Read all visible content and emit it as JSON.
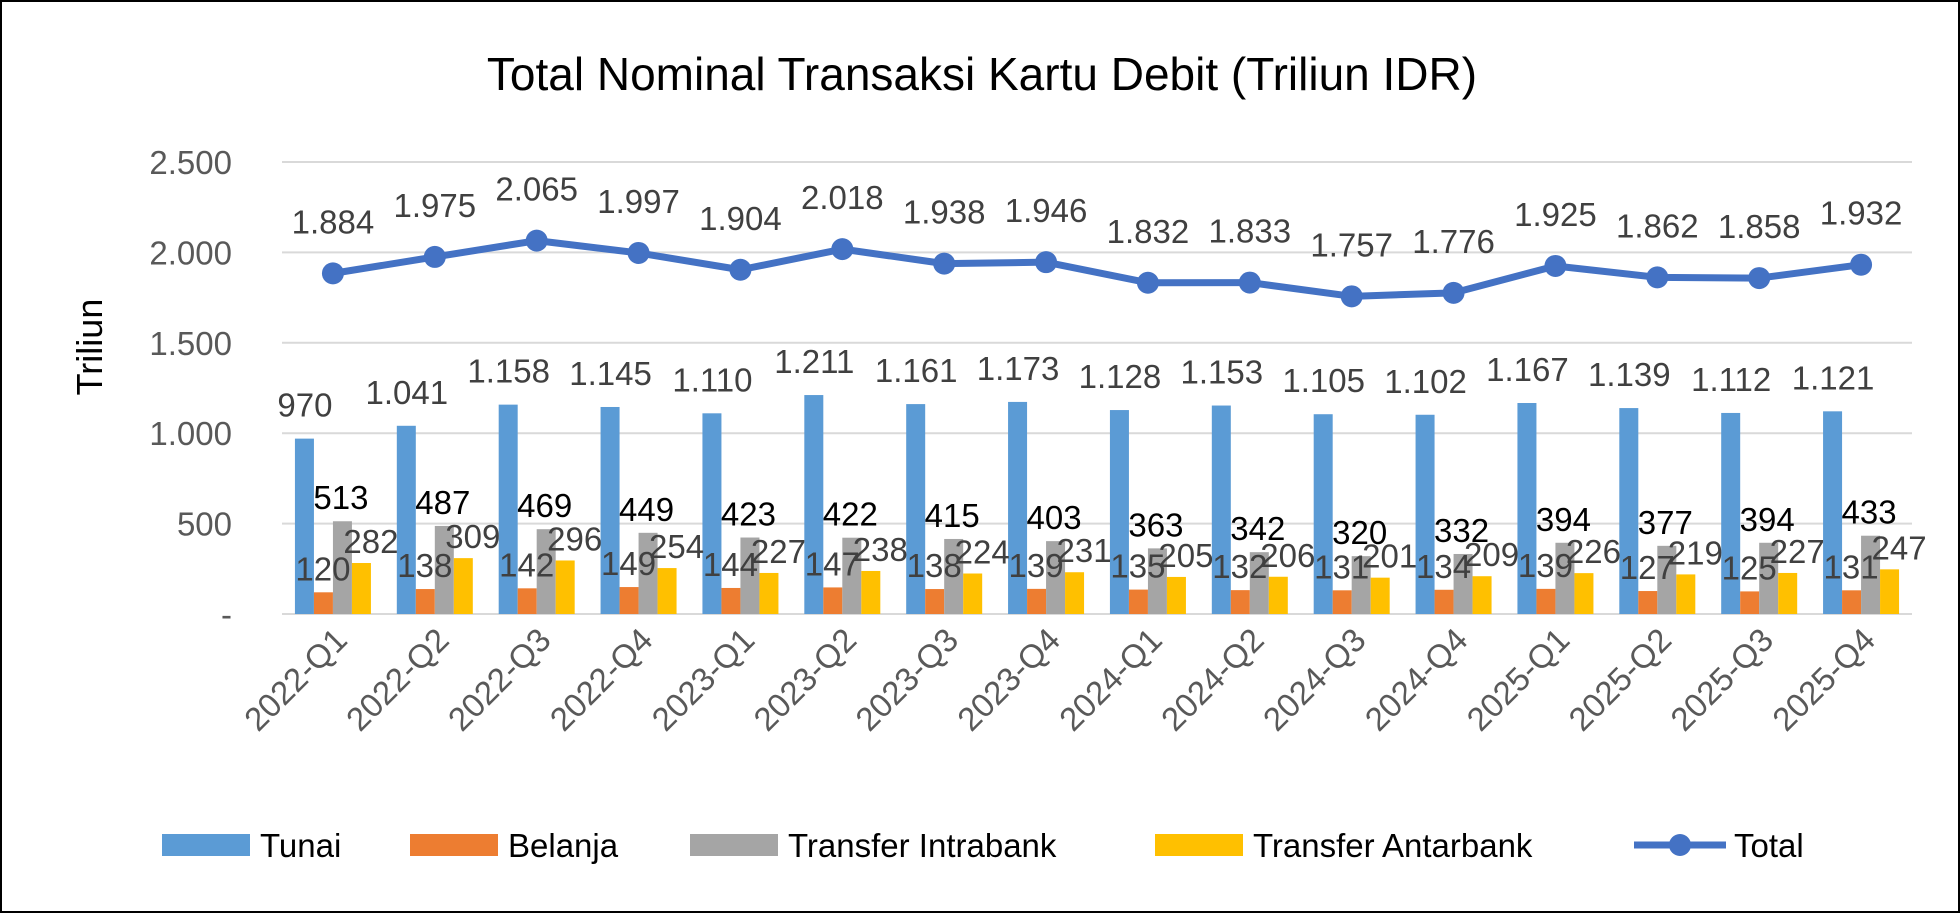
{
  "chart_data": {
    "type": "bar",
    "title": "Total Nominal Transaksi Kartu Debit (Triliun IDR)",
    "ylabel": "Triliun",
    "ylim": [
      0,
      2500
    ],
    "yticks": [
      {
        "value": 0,
        "label": "-"
      },
      {
        "value": 500,
        "label": "500"
      },
      {
        "value": 1000,
        "label": "1.000"
      },
      {
        "value": 1500,
        "label": "1.500"
      },
      {
        "value": 2000,
        "label": "2.000"
      },
      {
        "value": 2500,
        "label": "2.500"
      }
    ],
    "grid": true,
    "legend_position": "bottom",
    "categories": [
      "2022-Q1",
      "2022-Q2",
      "2022-Q3",
      "2022-Q4",
      "2023-Q1",
      "2023-Q2",
      "2023-Q3",
      "2023-Q4",
      "2024-Q1",
      "2024-Q2",
      "2024-Q3",
      "2024-Q4",
      "2025-Q1",
      "2025-Q2",
      "2025-Q3",
      "2025-Q4"
    ],
    "series": [
      {
        "name": "Tunai",
        "type": "bar",
        "color": "#5b9bd5",
        "values": [
          970,
          1041,
          1158,
          1145,
          1110,
          1211,
          1161,
          1173,
          1128,
          1153,
          1105,
          1102,
          1167,
          1139,
          1112,
          1121
        ],
        "labels": [
          "970",
          "1.041",
          "1.158",
          "1.145",
          "1.110",
          "1.211",
          "1.161",
          "1.173",
          "1.128",
          "1.153",
          "1.105",
          "1.102",
          "1.167",
          "1.139",
          "1.112",
          "1.121"
        ]
      },
      {
        "name": "Belanja",
        "type": "bar",
        "color": "#ed7d31",
        "values": [
          120,
          138,
          142,
          149,
          144,
          147,
          138,
          139,
          135,
          132,
          131,
          134,
          139,
          127,
          125,
          131
        ],
        "labels": [
          "120",
          "138",
          "142",
          "149",
          "144",
          "147",
          "138",
          "139",
          "135",
          "132",
          "131",
          "134",
          "139",
          "127",
          "125",
          "131"
        ]
      },
      {
        "name": "Transfer Intrabank",
        "type": "bar",
        "color": "#a5a5a5",
        "values": [
          513,
          487,
          469,
          449,
          423,
          422,
          415,
          403,
          363,
          342,
          320,
          332,
          394,
          377,
          394,
          433
        ],
        "labels": [
          "513",
          "487",
          "469",
          "449",
          "423",
          "422",
          "415",
          "403",
          "363",
          "342",
          "320",
          "332",
          "394",
          "377",
          "394",
          "433"
        ]
      },
      {
        "name": "Transfer Antarbank",
        "type": "bar",
        "color": "#ffc000",
        "values": [
          282,
          309,
          296,
          254,
          227,
          238,
          224,
          231,
          205,
          206,
          201,
          209,
          226,
          219,
          227,
          247
        ],
        "labels": [
          "282",
          "309",
          "296",
          "254",
          "227",
          "238",
          "224",
          "231",
          "205",
          "206",
          "201",
          "209",
          "226",
          "219",
          "227",
          "247"
        ]
      },
      {
        "name": "Total",
        "type": "line",
        "color": "#4472c4",
        "values": [
          1884,
          1975,
          2065,
          1997,
          1904,
          2018,
          1938,
          1946,
          1832,
          1833,
          1757,
          1776,
          1925,
          1862,
          1858,
          1932
        ],
        "labels": [
          "1.884",
          "1.975",
          "2.065",
          "1.997",
          "1.904",
          "2.018",
          "1.938",
          "1.946",
          "1.832",
          "1.833",
          "1.757",
          "1.776",
          "1.925",
          "1.862",
          "1.858",
          "1.932"
        ]
      }
    ]
  }
}
